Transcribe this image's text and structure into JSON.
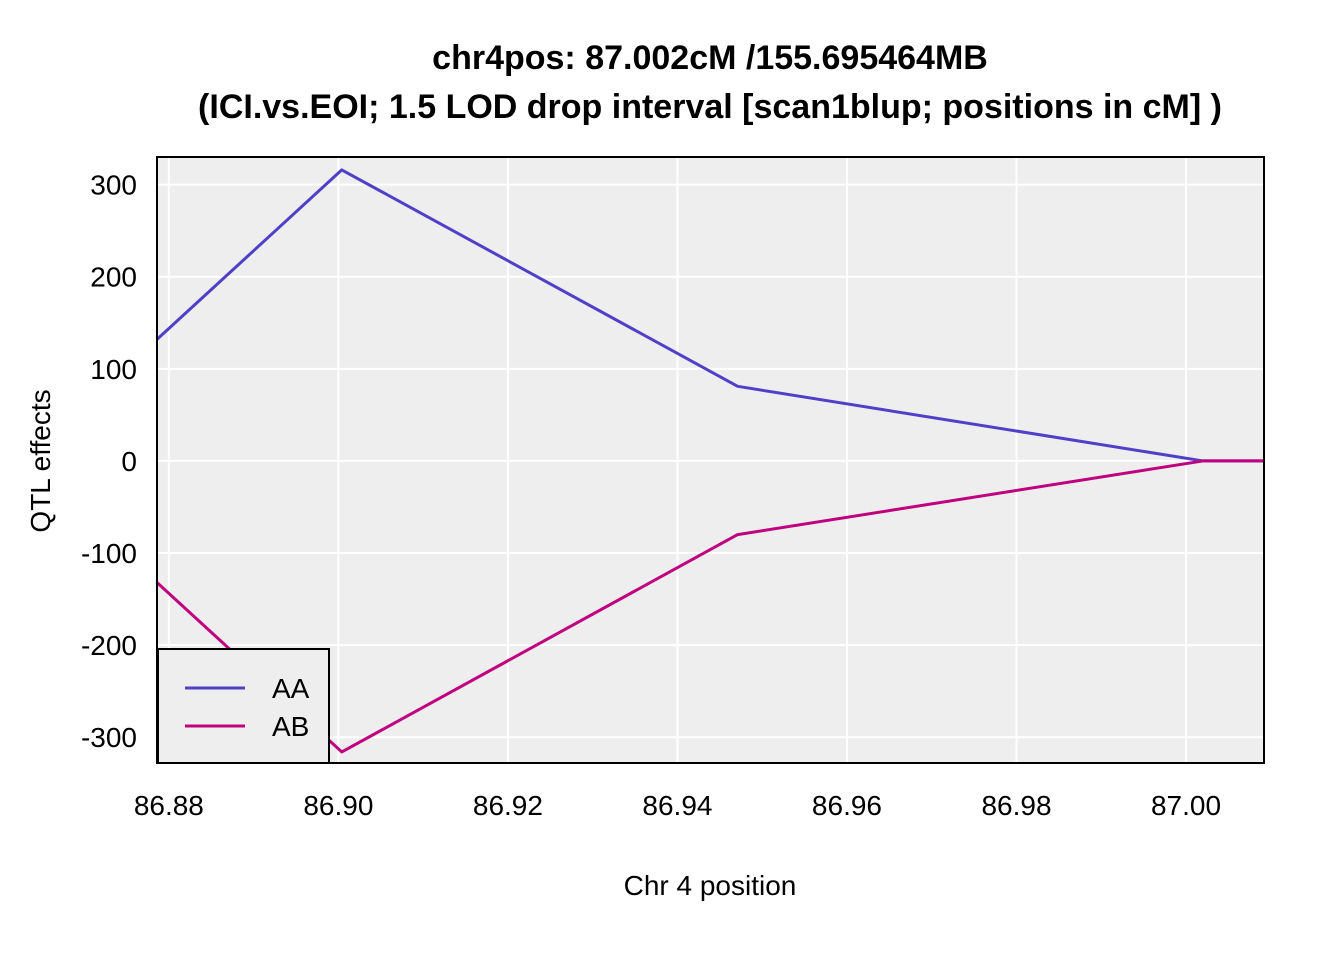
{
  "chart_data": {
    "type": "line",
    "title_line1": "chr4pos: 87.002cM /155.695464MB",
    "title_line2": "(ICI.vs.EOI; 1.5 LOD drop interval [scan1blup; positions in cM] )",
    "xlabel": "Chr 4 position",
    "ylabel": "QTL effects",
    "xlim": [
      86.8786,
      87.0092
    ],
    "ylim": [
      -328,
      330
    ],
    "x_ticks": [
      86.88,
      86.9,
      86.92,
      86.94,
      86.96,
      86.98,
      87.0
    ],
    "x_tick_labels": [
      "86.88",
      "86.90",
      "86.92",
      "86.94",
      "86.96",
      "86.98",
      "87.00"
    ],
    "y_ticks": [
      -300,
      -200,
      -100,
      0,
      100,
      200,
      300
    ],
    "y_tick_labels": [
      "-300",
      "-200",
      "-100",
      "0",
      "100",
      "200",
      "300"
    ],
    "grid": true,
    "background": "#eeeeee",
    "gridline_color": "#ffffff",
    "legend_position": "bottom-left",
    "series": [
      {
        "name": "AA",
        "color": "#5040c8",
        "x": [
          86.8786,
          86.9004,
          86.9471,
          87.002,
          87.0092
        ],
        "y": [
          132,
          316,
          81,
          0,
          0
        ]
      },
      {
        "name": "AB",
        "color": "#c0007f",
        "x": [
          86.8786,
          86.9004,
          86.9471,
          87.002,
          87.0092
        ],
        "y": [
          -132,
          -316,
          -80,
          0,
          0
        ]
      }
    ]
  }
}
